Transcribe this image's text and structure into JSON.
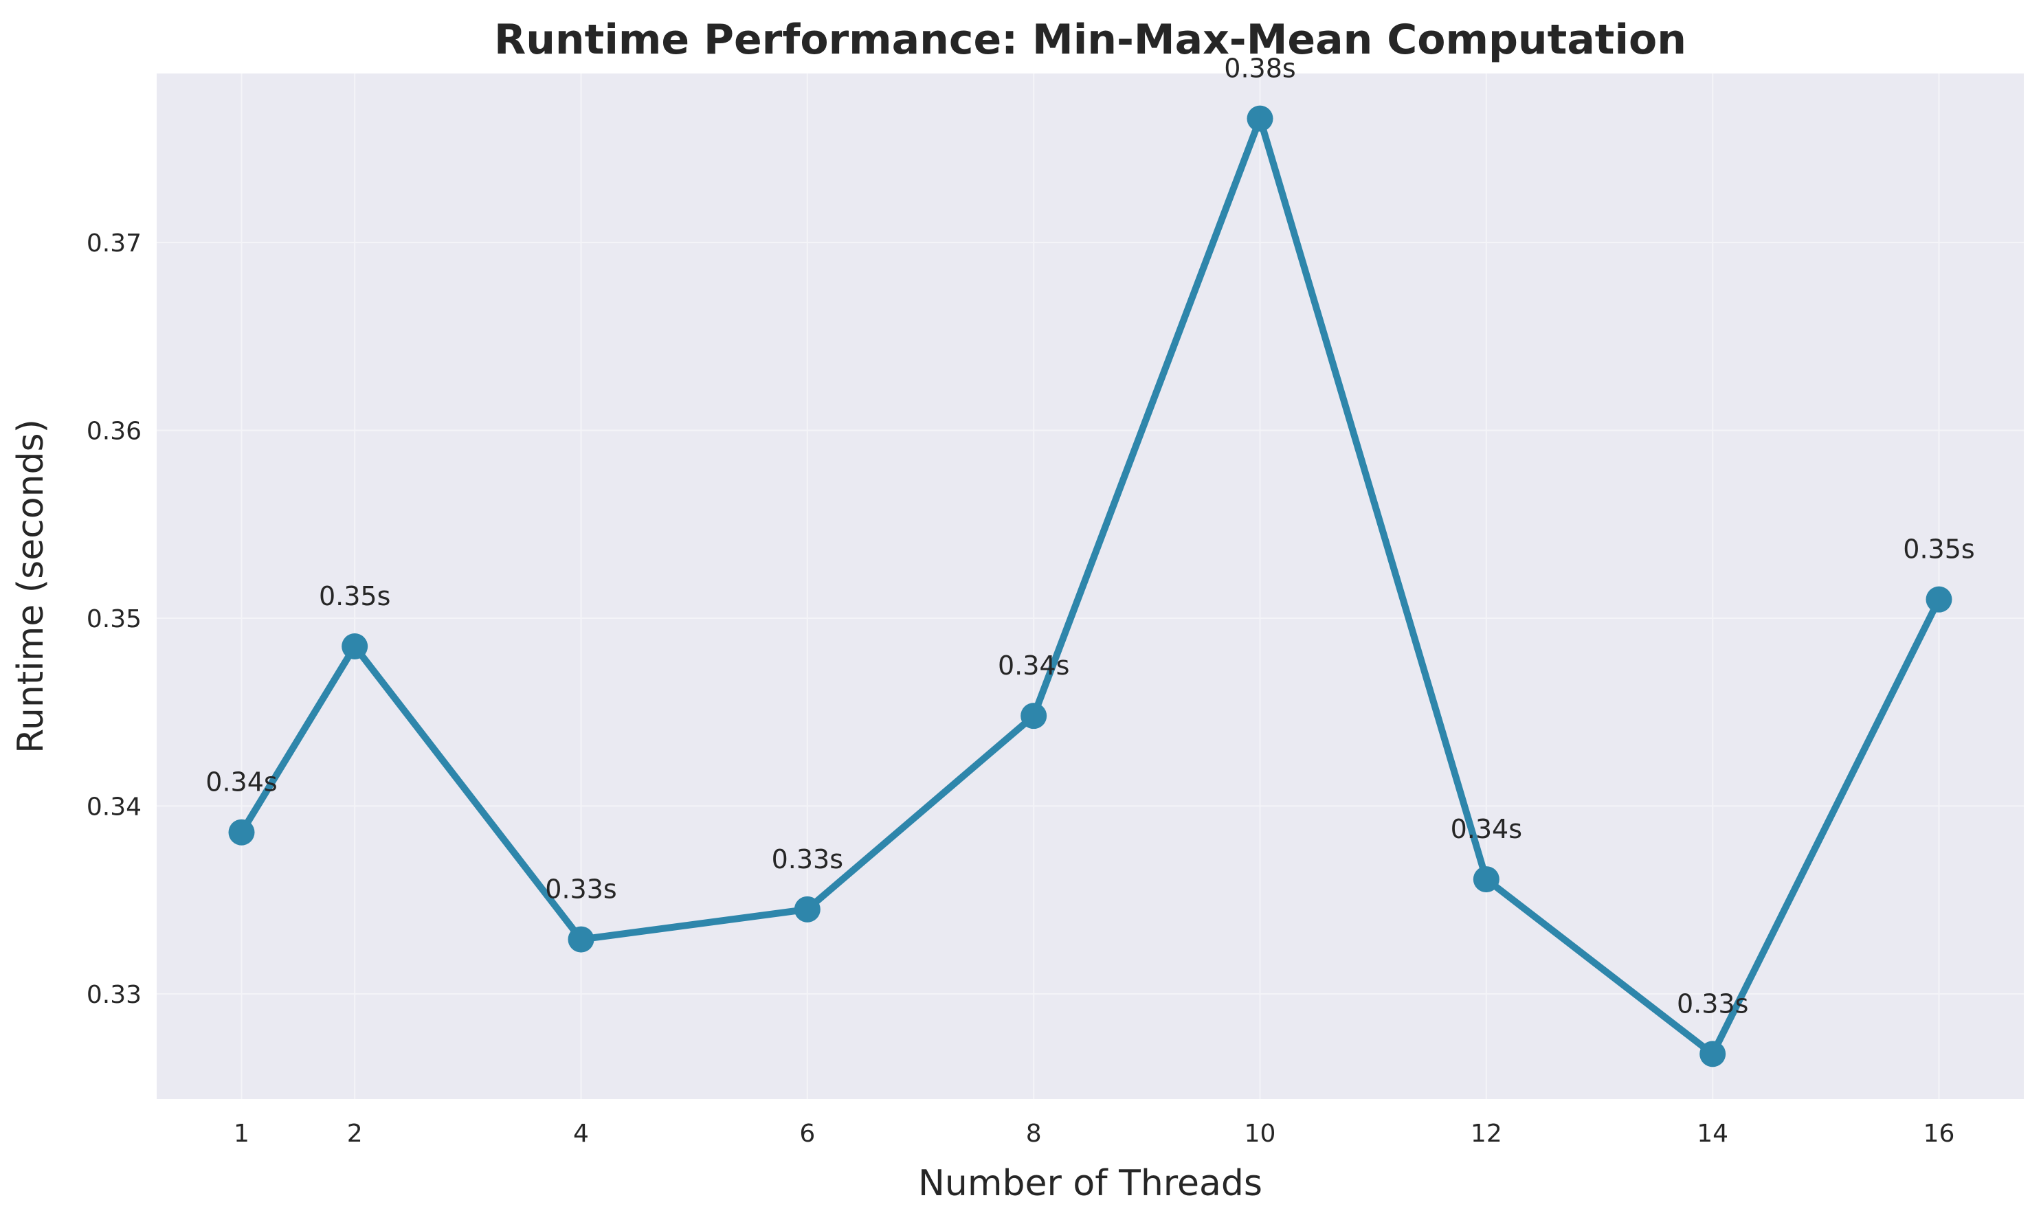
{
  "colors": {
    "plot_background": "#eaeaf2",
    "grid": "#f4f4f8",
    "line": "#2e86ab",
    "text": "#262626"
  },
  "chart_data": {
    "type": "line",
    "title": "Runtime Performance: Min-Max-Mean Computation",
    "xlabel": "Number of Threads",
    "ylabel": "Runtime (seconds)",
    "x": [
      1,
      2,
      4,
      6,
      8,
      10,
      12,
      14,
      16
    ],
    "series": [
      {
        "values": [
          0.3386,
          0.3485,
          0.3329,
          0.3345,
          0.3448,
          0.3766,
          0.3361,
          0.3268,
          0.351
        ],
        "labels": [
          "0.34s",
          "0.35s",
          "0.33s",
          "0.33s",
          "0.34s",
          "0.38s",
          "0.34s",
          "0.33s",
          "0.35s"
        ]
      }
    ],
    "xticks": [
      1,
      2,
      4,
      6,
      8,
      10,
      12,
      14,
      16
    ],
    "yticks": [
      0.33,
      0.34,
      0.35,
      0.36,
      0.37
    ],
    "ytick_labels": [
      "0.33",
      "0.34",
      "0.35",
      "0.36",
      "0.37"
    ],
    "xlim": [
      0.25,
      16.75
    ],
    "ylim": [
      0.3244,
      0.379
    ],
    "grid": true,
    "legend": false
  }
}
